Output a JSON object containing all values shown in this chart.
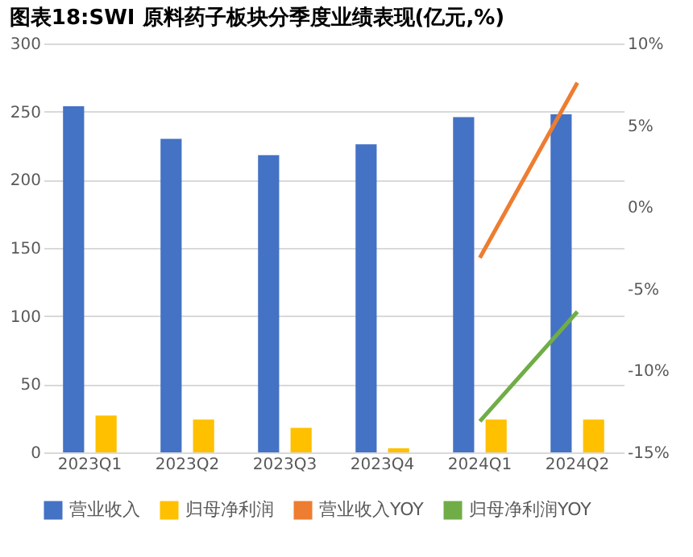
{
  "chart_data": {
    "type": "bar",
    "title": "图表18:SWI 原料药子板块分季度业绩表现(亿元,%)",
    "categories": [
      "2023Q1",
      "2023Q2",
      "2023Q3",
      "2023Q4",
      "2024Q1",
      "2024Q2"
    ],
    "series": [
      {
        "name": "营业收入",
        "color": "#4472c4",
        "values": [
          254,
          230,
          218,
          226,
          246,
          248
        ]
      },
      {
        "name": "归母净利润",
        "color": "#ffc000",
        "values": [
          27,
          24,
          18,
          3,
          24,
          24
        ]
      },
      {
        "name": "营业收入YOY",
        "type": "line",
        "axis": "y2",
        "color": "#ed7d31",
        "values": [
          null,
          null,
          null,
          null,
          -3.1,
          7.6
        ]
      },
      {
        "name": "归母净利润YOY",
        "type": "line",
        "axis": "y2",
        "color": "#70ad47",
        "values": [
          null,
          null,
          null,
          null,
          -13.1,
          -6.4
        ]
      }
    ],
    "ylim": [
      0,
      300
    ],
    "yticks": [
      0,
      50,
      100,
      150,
      200,
      250,
      300
    ],
    "y2lim": [
      -15,
      10
    ],
    "y2ticks": [
      {
        "value": -15,
        "label": "-15%"
      },
      {
        "value": -10,
        "label": "-10%"
      },
      {
        "value": -5,
        "label": "-5%"
      },
      {
        "value": 0,
        "label": "0%"
      },
      {
        "value": 5,
        "label": "5%"
      },
      {
        "value": 10,
        "label": "10%"
      }
    ],
    "grid": "y",
    "legend": "bottom"
  }
}
